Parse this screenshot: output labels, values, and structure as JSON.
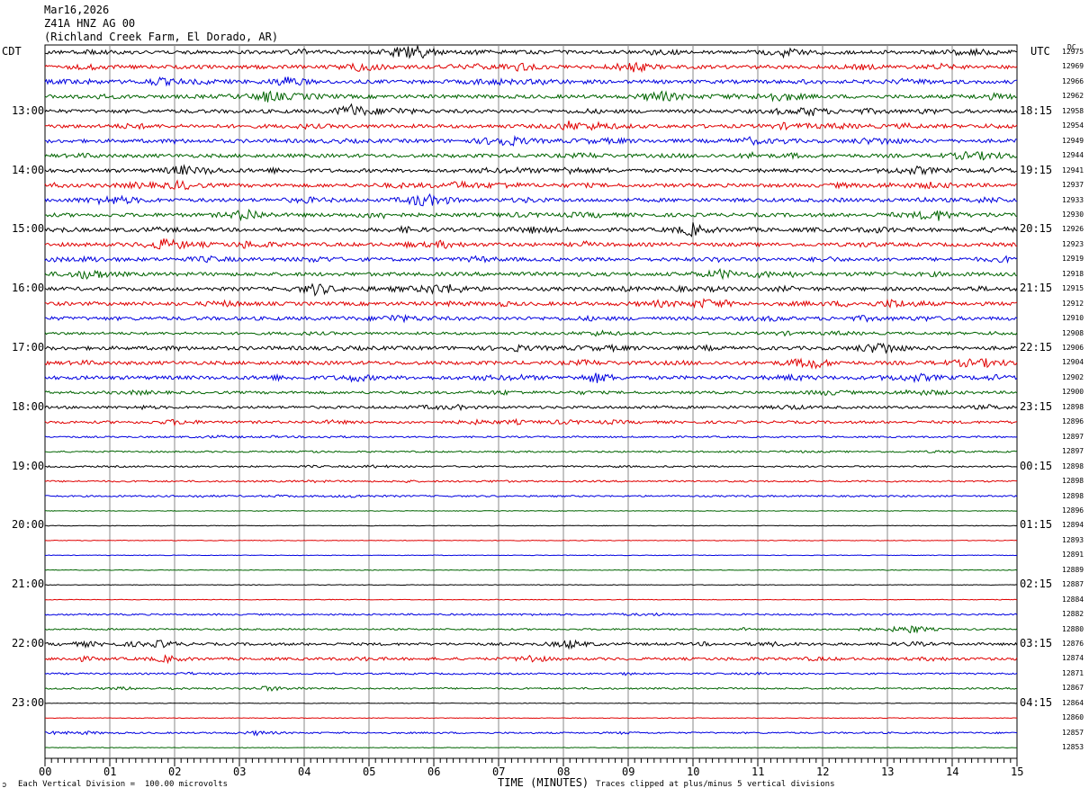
{
  "header": {
    "date": "Mar16,2026",
    "station": "Z41A HNZ AG 00",
    "location": "(Richland Creek Farm, El Dorado, AR)"
  },
  "left_tz": "CDT",
  "right_tz": "UTC",
  "dc_label": "DC",
  "footer": {
    "division_note": "Each Vertical Division =  100.00 microvolts",
    "xlabel": "TIME (MINUTES)",
    "clip_note": "Traces clipped at plus/minus 5 vertical divisions",
    "corner_mark": "ↄ"
  },
  "chart_data": {
    "type": "line",
    "xlabel": "TIME (MINUTES)",
    "xlim": [
      0,
      15
    ],
    "x_ticks": [
      "00",
      "01",
      "02",
      "03",
      "04",
      "05",
      "06",
      "07",
      "08",
      "09",
      "10",
      "11",
      "12",
      "13",
      "14",
      "15"
    ],
    "trace_colors": [
      "#000000",
      "#e00000",
      "#0000e0",
      "#006400"
    ],
    "trace_count": 48,
    "left_hour_labels": [
      "13:00",
      "14:00",
      "15:00",
      "16:00",
      "17:00",
      "18:00",
      "19:00",
      "20:00",
      "21:00",
      "22:00",
      "23:00"
    ],
    "right_hour_labels": [
      "18:15",
      "19:15",
      "20:15",
      "21:15",
      "22:15",
      "23:15",
      "00:15",
      "01:15",
      "02:15",
      "03:15",
      "04:15"
    ],
    "hour_label_first_trace": 4,
    "dc_values": [
      "12975",
      "12969",
      "12966",
      "12962",
      "12958",
      "12954",
      "12949",
      "12944",
      "12941",
      "12937",
      "12933",
      "12930",
      "12926",
      "12923",
      "12919",
      "12918",
      "12915",
      "12912",
      "12910",
      "12908",
      "12906",
      "12904",
      "12902",
      "12900",
      "12898",
      "12896",
      "12897",
      "12897",
      "12898",
      "12898",
      "12898",
      "12896",
      "12894",
      "12893",
      "12891",
      "12889",
      "12887",
      "12884",
      "12882",
      "12880",
      "12876",
      "12874",
      "12871",
      "12867",
      "12864",
      "12860",
      "12857",
      "12853"
    ],
    "activity_by_trace": [
      3,
      3,
      3,
      3,
      3,
      3,
      3,
      3,
      3,
      3,
      3,
      3,
      3,
      3,
      3,
      3,
      3,
      3,
      3,
      2,
      3,
      3,
      3,
      2,
      2,
      2,
      1,
      1,
      1,
      1,
      1,
      0,
      0,
      0,
      0,
      0,
      0,
      0,
      1,
      1,
      2,
      2,
      1,
      1,
      0,
      0,
      1,
      0
    ],
    "events": [
      {
        "trace": 0,
        "minute": 5.65,
        "amp": 5
      },
      {
        "trace": 0,
        "minute": 11.4,
        "amp": 2
      },
      {
        "trace": 1,
        "minute": 9.1,
        "amp": 2
      },
      {
        "trace": 1,
        "minute": 7.3,
        "amp": 1.5
      },
      {
        "trace": 2,
        "minute": 3.75,
        "amp": 2.5
      },
      {
        "trace": 2,
        "minute": 1.75,
        "amp": 1.5
      },
      {
        "trace": 3,
        "minute": 3.45,
        "amp": 2.5
      },
      {
        "trace": 3,
        "minute": 9.5,
        "amp": 1.5
      },
      {
        "trace": 3,
        "minute": 11.2,
        "amp": 1.5
      },
      {
        "trace": 4,
        "minute": 4.75,
        "amp": 3
      },
      {
        "trace": 4,
        "minute": 11.8,
        "amp": 2
      },
      {
        "trace": 5,
        "minute": 8.1,
        "amp": 2
      },
      {
        "trace": 6,
        "minute": 7.0,
        "amp": 2
      },
      {
        "trace": 6,
        "minute": 10.9,
        "amp": 1.5
      },
      {
        "trace": 8,
        "minute": 2.1,
        "amp": 2
      },
      {
        "trace": 8,
        "minute": 8.1,
        "amp": 1.5
      },
      {
        "trace": 9,
        "minute": 2.1,
        "amp": 2
      },
      {
        "trace": 9,
        "minute": 6.4,
        "amp": 1.5
      },
      {
        "trace": 10,
        "minute": 5.8,
        "amp": 2.5
      },
      {
        "trace": 11,
        "minute": 3.1,
        "amp": 2.5
      },
      {
        "trace": 11,
        "minute": 13.8,
        "amp": 2
      },
      {
        "trace": 12,
        "minute": 10.0,
        "amp": 3
      },
      {
        "trace": 13,
        "minute": 1.8,
        "amp": 2.5
      },
      {
        "trace": 13,
        "minute": 6.15,
        "amp": 1.5
      },
      {
        "trace": 15,
        "minute": 0.75,
        "amp": 1.5
      },
      {
        "trace": 15,
        "minute": 10.45,
        "amp": 2
      },
      {
        "trace": 16,
        "minute": 4.2,
        "amp": 3
      },
      {
        "trace": 16,
        "minute": 6.0,
        "amp": 1.5
      },
      {
        "trace": 17,
        "minute": 10.2,
        "amp": 2
      },
      {
        "trace": 17,
        "minute": 13.1,
        "amp": 2
      },
      {
        "trace": 20,
        "minute": 12.9,
        "amp": 1.5
      },
      {
        "trace": 21,
        "minute": 11.85,
        "amp": 2.5
      },
      {
        "trace": 22,
        "minute": 4.8,
        "amp": 1.5
      },
      {
        "trace": 22,
        "minute": 8.5,
        "amp": 2
      },
      {
        "trace": 23,
        "minute": 12.0,
        "amp": 1
      },
      {
        "trace": 24,
        "minute": 11.5,
        "amp": 1
      },
      {
        "trace": 25,
        "minute": 2.0,
        "amp": 1
      },
      {
        "trace": 39,
        "minute": 13.4,
        "amp": 2
      },
      {
        "trace": 40,
        "minute": 8.1,
        "amp": 2
      },
      {
        "trace": 40,
        "minute": 1.8,
        "amp": 1.5
      },
      {
        "trace": 41,
        "minute": 7.5,
        "amp": 1.5
      },
      {
        "trace": 41,
        "minute": 1.9,
        "amp": 1.5
      },
      {
        "trace": 43,
        "minute": 3.45,
        "amp": 1.2
      },
      {
        "trace": 46,
        "minute": 3.3,
        "amp": 1
      }
    ]
  }
}
